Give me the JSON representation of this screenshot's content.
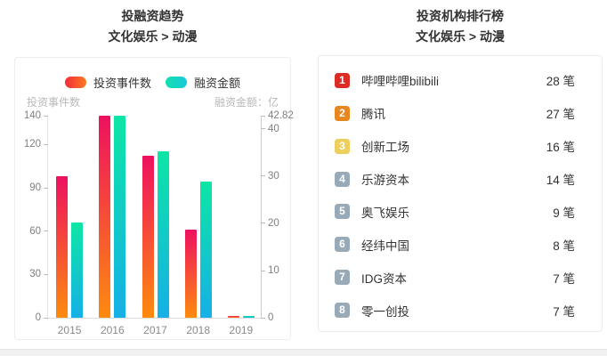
{
  "chart_data": {
    "type": "bar",
    "title": "投融资趋势",
    "subtitle": "文化娱乐 > 动漫",
    "categories": [
      "2015",
      "2016",
      "2017",
      "2018",
      "2019"
    ],
    "series": [
      {
        "name": "投资事件数",
        "axis": "left",
        "values": [
          98,
          140,
          112,
          61,
          1
        ],
        "color_top": "#ee1060",
        "color_bottom": "#fd8b0e",
        "legend_gradient": [
          "#f32b3c",
          "#fb7a20"
        ]
      },
      {
        "name": "融资金额",
        "axis": "right",
        "values": [
          20.2,
          42.82,
          35.3,
          28.9,
          0.4
        ],
        "color_top": "#0de6a5",
        "color_bottom": "#16b0e6",
        "legend_gradient": [
          "#12dfae",
          "#17c9d9"
        ]
      }
    ],
    "left_axis": {
      "label": "投资事件数",
      "ticks": [
        0,
        30,
        60,
        90,
        120,
        140
      ],
      "max": 140
    },
    "right_axis": {
      "label": "融资金额：亿",
      "ticks": [
        0,
        10,
        20,
        30,
        40,
        42.82
      ],
      "max": 42.82
    },
    "legend_position": "top",
    "grid": "off"
  },
  "ranking": {
    "title": "投资机构排行榜",
    "subtitle": "文化娱乐 > 动漫",
    "items": [
      {
        "rank": "1",
        "name": "哔哩哔哩bilibili",
        "count": "28 笔",
        "badge_color": "#dd2b25"
      },
      {
        "rank": "2",
        "name": "腾讯",
        "count": "27 笔",
        "badge_color": "#e8871f"
      },
      {
        "rank": "3",
        "name": "创新工场",
        "count": "16 笔",
        "badge_color": "#eecf5e"
      },
      {
        "rank": "4",
        "name": "乐游资本",
        "count": "14 笔",
        "badge_color": "#98aab7"
      },
      {
        "rank": "5",
        "name": "奥飞娱乐",
        "count": "9 笔",
        "badge_color": "#98aab7"
      },
      {
        "rank": "6",
        "name": "经纬中国",
        "count": "8 笔",
        "badge_color": "#98aab7"
      },
      {
        "rank": "7",
        "name": "IDG资本",
        "count": "7 笔",
        "badge_color": "#98aab7"
      },
      {
        "rank": "8",
        "name": "零一创投",
        "count": "7 笔",
        "badge_color": "#98aab7"
      }
    ]
  }
}
